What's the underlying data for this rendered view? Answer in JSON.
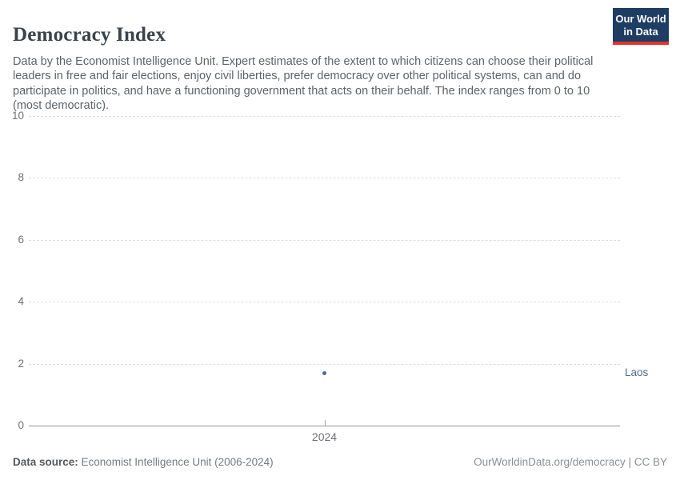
{
  "header": {
    "title": "Democracy Index"
  },
  "logo": {
    "line1": "Our World",
    "line2": "in Data",
    "bg_color": "#1d3d63",
    "bar_color": "#e0342c"
  },
  "subtitle": "Data by the Economist Intelligence Unit. Expert estimates of the extent to which citizens can choose their political leaders in free and fair elections, enjoy civil liberties, prefer democracy over other political systems, can and do participate in politics, and have a functioning government that acts on their behalf. The index ranges from 0 to 10 (most democratic).",
  "chart_data": {
    "type": "scatter",
    "title": "Democracy Index",
    "x": [
      2024
    ],
    "series": [
      {
        "name": "Laos",
        "values": [
          1.7
        ],
        "color": "#4c6a9e",
        "label_color": "#53689a"
      }
    ],
    "xlabel": "",
    "ylabel": "",
    "ylim": [
      0,
      10
    ],
    "yticks": [
      0,
      2,
      4,
      6,
      8,
      10
    ],
    "xtick_labels": [
      "2024"
    ],
    "grid": "horizontal-dashed",
    "legend_position": "entity-label-right"
  },
  "footer": {
    "source_label": "Data source:",
    "source_value": " Economist Intelligence Unit (2006-2024)",
    "credit": "OurWorldinData.org/democracy | CC BY"
  }
}
